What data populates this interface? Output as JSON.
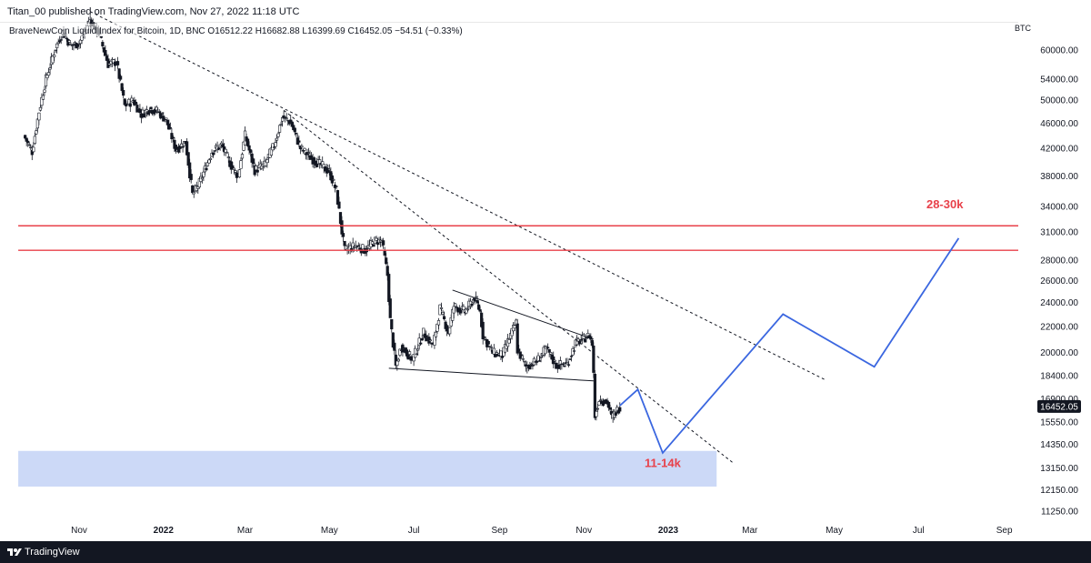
{
  "header": {
    "publish_line": "Titan_00 published on TradingView.com, Nov 27, 2022 11:18 UTC"
  },
  "footer": {
    "brand": "TradingView",
    "logo_icon": "tradingview-logo-icon"
  },
  "chart_data": {
    "type": "candlestick",
    "title": "BraveNewCoin Liquid Index for Bitcoin, 1D, BNC",
    "ohlc": {
      "open": "O16512.22",
      "high": "H16682.88",
      "low": "L16399.69",
      "close": "C16452.05",
      "change": "−54.51 (−0.33%)"
    },
    "currency_label": "BTC",
    "y_scale": "log",
    "y_ticks": [
      "60000.00",
      "54000.00",
      "50000.00",
      "46000.00",
      "42000.00",
      "38000.00",
      "34000.00",
      "31000.00",
      "28000.00",
      "26000.00",
      "24000.00",
      "22000.00",
      "20000.00",
      "18400.00",
      "16900.00",
      "15550.00",
      "14350.00",
      "13150.00",
      "12150.00",
      "11250.00"
    ],
    "x_ticks": [
      {
        "label": "Nov",
        "date": "2021-11-01",
        "bold": false
      },
      {
        "label": "2022",
        "date": "2022-01-01",
        "bold": true
      },
      {
        "label": "Mar",
        "date": "2022-03-01",
        "bold": false
      },
      {
        "label": "May",
        "date": "2022-05-01",
        "bold": false
      },
      {
        "label": "Jul",
        "date": "2022-07-01",
        "bold": false
      },
      {
        "label": "Sep",
        "date": "2022-09-01",
        "bold": false
      },
      {
        "label": "Nov",
        "date": "2022-11-01",
        "bold": false
      },
      {
        "label": "2023",
        "date": "2023-01-01",
        "bold": true
      },
      {
        "label": "Mar",
        "date": "2023-03-01",
        "bold": false
      },
      {
        "label": "May",
        "date": "2023-05-01",
        "bold": false
      },
      {
        "label": "Jul",
        "date": "2023-07-01",
        "bold": false
      },
      {
        "label": "Sep",
        "date": "2023-09-01",
        "bold": false
      }
    ],
    "last_price": "16452.05",
    "close_path": [
      [
        "2021-09-22",
        44000
      ],
      [
        "2021-09-28",
        41500
      ],
      [
        "2021-10-03",
        48000
      ],
      [
        "2021-10-08",
        54000
      ],
      [
        "2021-10-15",
        60500
      ],
      [
        "2021-10-20",
        64000
      ],
      [
        "2021-10-26",
        61000
      ],
      [
        "2021-11-01",
        61500
      ],
      [
        "2021-11-09",
        67000
      ],
      [
        "2021-11-15",
        64000
      ],
      [
        "2021-11-22",
        57000
      ],
      [
        "2021-11-28",
        57500
      ],
      [
        "2021-12-04",
        49000
      ],
      [
        "2021-12-10",
        50000
      ],
      [
        "2021-12-16",
        47500
      ],
      [
        "2021-12-22",
        48500
      ],
      [
        "2021-12-28",
        48000
      ],
      [
        "2022-01-03",
        46500
      ],
      [
        "2022-01-10",
        41800
      ],
      [
        "2022-01-17",
        43000
      ],
      [
        "2022-01-22",
        35500
      ],
      [
        "2022-01-27",
        37000
      ],
      [
        "2022-02-05",
        41500
      ],
      [
        "2022-02-12",
        42500
      ],
      [
        "2022-02-20",
        39000
      ],
      [
        "2022-02-24",
        38000
      ],
      [
        "2022-03-01",
        44000
      ],
      [
        "2022-03-08",
        38800
      ],
      [
        "2022-03-15",
        39500
      ],
      [
        "2022-03-22",
        42500
      ],
      [
        "2022-03-28",
        47000
      ],
      [
        "2022-04-03",
        46200
      ],
      [
        "2022-04-10",
        42000
      ],
      [
        "2022-04-18",
        40500
      ],
      [
        "2022-04-25",
        39500
      ],
      [
        "2022-05-01",
        38500
      ],
      [
        "2022-05-06",
        36000
      ],
      [
        "2022-05-10",
        31000
      ],
      [
        "2022-05-12",
        29000
      ],
      [
        "2022-05-20",
        29500
      ],
      [
        "2022-05-27",
        29000
      ],
      [
        "2022-06-03",
        30000
      ],
      [
        "2022-06-08",
        30000
      ],
      [
        "2022-06-12",
        26500
      ],
      [
        "2022-06-14",
        22500
      ],
      [
        "2022-06-18",
        19000
      ],
      [
        "2022-06-22",
        20500
      ],
      [
        "2022-06-30",
        19500
      ],
      [
        "2022-07-08",
        21500
      ],
      [
        "2022-07-15",
        20500
      ],
      [
        "2022-07-20",
        23500
      ],
      [
        "2022-07-26",
        21500
      ],
      [
        "2022-07-30",
        23700
      ],
      [
        "2022-08-07",
        23200
      ],
      [
        "2022-08-14",
        24400
      ],
      [
        "2022-08-18",
        23200
      ],
      [
        "2022-08-20",
        21300
      ],
      [
        "2022-08-27",
        20000
      ],
      [
        "2022-09-03",
        19800
      ],
      [
        "2022-09-09",
        21300
      ],
      [
        "2022-09-13",
        22300
      ],
      [
        "2022-09-14",
        20200
      ],
      [
        "2022-09-20",
        19000
      ],
      [
        "2022-09-28",
        19400
      ],
      [
        "2022-10-05",
        20300
      ],
      [
        "2022-10-12",
        19100
      ],
      [
        "2022-10-20",
        19200
      ],
      [
        "2022-10-26",
        20700
      ],
      [
        "2022-11-05",
        21300
      ],
      [
        "2022-11-07",
        20600
      ],
      [
        "2022-11-08",
        18500
      ],
      [
        "2022-11-09",
        15900
      ],
      [
        "2022-11-12",
        16900
      ],
      [
        "2022-11-18",
        16700
      ],
      [
        "2022-11-21",
        15800
      ],
      [
        "2022-11-27",
        16452
      ]
    ],
    "lines": [
      {
        "name": "resistance-upper",
        "style": "dashed",
        "color": "#131722",
        "points": [
          [
            "2021-11-09",
            69000
          ],
          [
            "2023-04-25",
            18100
          ]
        ]
      },
      {
        "name": "resistance-lower",
        "style": "dashed",
        "color": "#131722",
        "points": [
          [
            "2022-03-29",
            48200
          ],
          [
            "2023-02-17",
            13400
          ]
        ]
      },
      {
        "name": "triangle-top",
        "style": "solid",
        "color": "#131722",
        "points": [
          [
            "2022-07-29",
            25100
          ],
          [
            "2022-11-08",
            21000
          ]
        ]
      },
      {
        "name": "triangle-bottom",
        "style": "solid",
        "color": "#131722",
        "points": [
          [
            "2022-06-13",
            18900
          ],
          [
            "2022-11-08",
            18050
          ]
        ]
      },
      {
        "name": "red-level-upper",
        "style": "solid",
        "color": "#e8414a",
        "points": [
          [
            "2021-09-18",
            31700
          ],
          [
            "2023-09-25",
            31700
          ]
        ]
      },
      {
        "name": "red-level-lower",
        "style": "solid",
        "color": "#e8414a",
        "points": [
          [
            "2021-09-18",
            29000
          ],
          [
            "2023-09-25",
            29000
          ]
        ]
      }
    ],
    "projection": {
      "color": "#3b67e0",
      "points": [
        [
          "2022-11-27",
          16500
        ],
        [
          "2022-12-10",
          17500
        ],
        [
          "2022-12-28",
          13900
        ],
        [
          "2023-03-25",
          23000
        ],
        [
          "2023-05-30",
          19000
        ],
        [
          "2023-07-30",
          30300
        ]
      ]
    },
    "zone": {
      "color": "#ccd9f7",
      "x": [
        "2021-09-18",
        "2023-02-05"
      ],
      "y": [
        12300,
        14000
      ]
    },
    "annotations": [
      {
        "text": "28-30k",
        "color": "#e8414a",
        "date": "2023-07-20",
        "price": 33800
      },
      {
        "text": "11-14k",
        "color": "#e8414a",
        "date": "2022-12-28",
        "price": 13200
      }
    ]
  }
}
